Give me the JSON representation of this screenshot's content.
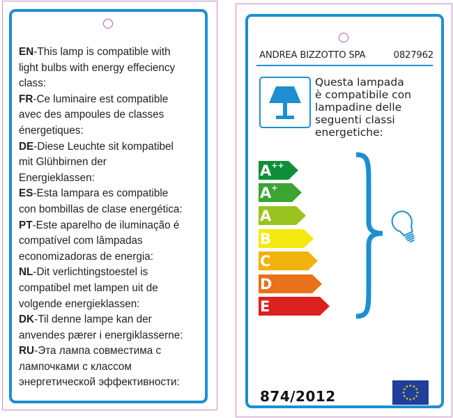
{
  "left_card": {
    "blocks": [
      {
        "code": "EN",
        "lines": [
          "-This lamp is compatible with",
          "light bulbs with energy effeciency",
          "class:"
        ]
      },
      {
        "code": "FR",
        "lines": [
          "-Ce luminaire est compatible",
          "avec des ampoules de classes",
          "énergetiques:"
        ]
      },
      {
        "code": "DE",
        "lines": [
          "-Diese Leuchte sit kompatibel",
          " mit Glühbirnen der",
          "Energieklassen:"
        ]
      },
      {
        "code": "ES",
        "lines": [
          "-Esta lampara es compatible",
          "con bombillas de clase energética:"
        ]
      },
      {
        "code": "PT",
        "lines": [
          "-Este aparelho de iluminação é",
          "compatível com lâmpadas",
          "economizadoras de energia:"
        ]
      },
      {
        "code": "NL",
        "lines": [
          "-Dit verlichtingstoestel is",
          "compatibel met lampen uit de",
          "volgende energieklassen:"
        ]
      },
      {
        "code": "DK",
        "lines": [
          "-Til denne lampe kan der",
          "anvendes pærer i energiklasserne:"
        ]
      },
      {
        "code": "RU",
        "lines": [
          "-Эта лампа совместима с",
          "лампочками с классом",
          "энергетической эффективности:"
        ]
      }
    ]
  },
  "right_card": {
    "supplier": "ANDREA BIZZOTTO SPA",
    "model": "0827962",
    "info_lines": [
      "Questa lampada",
      "è compatibile con",
      "lampadine delle",
      "seguenti classi",
      "energetiche:"
    ],
    "classes": [
      {
        "letter": "A",
        "sup": "++",
        "color": "#0f8f3a"
      },
      {
        "letter": "A",
        "sup": "+",
        "color": "#3ba433"
      },
      {
        "letter": "A",
        "sup": "",
        "color": "#99c31e"
      },
      {
        "letter": "B",
        "sup": "",
        "color": "#f5ea0f"
      },
      {
        "letter": "C",
        "sup": "",
        "color": "#f2b20e"
      },
      {
        "letter": "D",
        "sup": "",
        "color": "#e8711a"
      },
      {
        "letter": "E",
        "sup": "",
        "color": "#dc2020"
      }
    ],
    "regulation": "874/2012",
    "icons": [
      "table-lamp-icon",
      "light-bulb-icon",
      "eu-flag-icon"
    ]
  },
  "colors": {
    "border": "#1d8fd0",
    "outline": "#c98fc4"
  }
}
